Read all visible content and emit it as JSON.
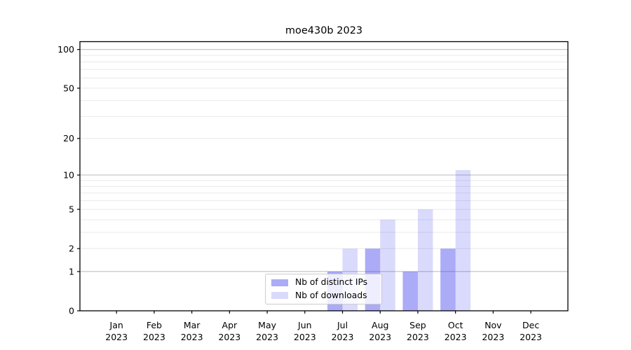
{
  "chart_data": {
    "type": "bar",
    "title": "moe430b 2023",
    "categories": [
      "Jan",
      "Feb",
      "Mar",
      "Apr",
      "May",
      "Jun",
      "Jul",
      "Aug",
      "Sep",
      "Oct",
      "Nov",
      "Dec"
    ],
    "year_label": "2023",
    "series": [
      {
        "name": "Nb of distinct IPs",
        "color": "#4444ee",
        "alpha": 0.45,
        "values": [
          0,
          0,
          0,
          0,
          0,
          0,
          1,
          2,
          1,
          2,
          0,
          0
        ]
      },
      {
        "name": "Nb of downloads",
        "color": "#4444ee",
        "alpha": 0.2,
        "values": [
          0,
          0,
          0,
          0,
          0,
          0,
          2,
          4,
          5,
          11,
          0,
          0
        ]
      }
    ],
    "yscale": "log1p",
    "ylim": [
      0,
      115
    ],
    "yticks": [
      100,
      50,
      20,
      10,
      5,
      2,
      1,
      0
    ],
    "grid_major": [
      1,
      10,
      100
    ],
    "grid_minor": [
      2,
      3,
      4,
      5,
      6,
      7,
      8,
      9,
      20,
      30,
      40,
      50,
      60,
      70,
      80,
      90
    ],
    "legend_position": "lower center",
    "grid_on": true,
    "colors": {
      "grid_major": "#b8b8b8",
      "grid_minor": "#e9e9e9",
      "axis": "#000000",
      "text": "#000000",
      "background": "#ffffff"
    }
  }
}
